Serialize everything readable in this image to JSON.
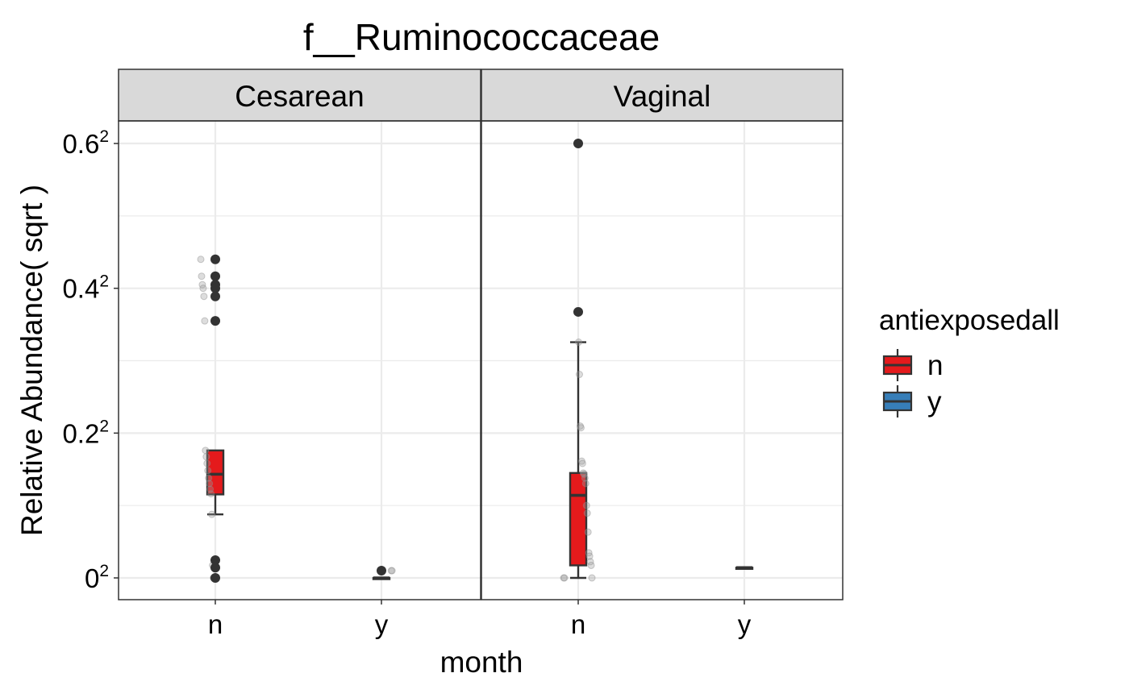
{
  "chart_data": {
    "type": "box",
    "title": "f__Ruminococcaceae",
    "xlabel": "month",
    "ylabel": "Relative Abundance( sqrt )",
    "y_scale": "sqrt",
    "ylim": [
      0,
      0.366
    ],
    "y_ticks": [
      {
        "value": 0,
        "base": "0",
        "exp": "2"
      },
      {
        "value": 0.04,
        "base": "0.2",
        "exp": "2"
      },
      {
        "value": 0.16,
        "base": "0.4",
        "exp": "2"
      },
      {
        "value": 0.36,
        "base": "0.6",
        "exp": "2"
      }
    ],
    "categories": [
      "n",
      "y"
    ],
    "panels": [
      "Cesarean",
      "Vaginal"
    ],
    "legend": {
      "title": "antiexposedall",
      "position": "right",
      "entries": [
        {
          "label": "n",
          "color": "#E41A1C"
        },
        {
          "label": "y",
          "color": "#377EB8"
        }
      ]
    },
    "grid": true,
    "colors": {
      "n": "#E41A1C",
      "y": "#377EB8",
      "strip_fill": "#D9D9D9",
      "grid": "#EBEBEB",
      "outline": "#333333"
    },
    "boxes": [
      {
        "panel": "Cesarean",
        "x": "n",
        "group": "n",
        "min": 0.0077,
        "q1": 0.0133,
        "median": 0.0205,
        "q3": 0.031,
        "max": 0.031,
        "outliers": [
          0.1936,
          0.1736,
          0.164,
          0.16,
          0.1512,
          0.126,
          0.0006,
          0.0002,
          0
        ],
        "points": [
          0.1936,
          0.1736,
          0.164,
          0.16,
          0.1512,
          0.126,
          0.031,
          0.028,
          0.025,
          0.022,
          0.019,
          0.017,
          0.015,
          0.0135,
          0.0077,
          0.0003,
          0,
          0
        ]
      },
      {
        "panel": "Cesarean",
        "x": "y",
        "group": "n",
        "min": 0,
        "q1": 0,
        "median": 0,
        "q3": 0,
        "max": 0,
        "outliers": [
          0.0001
        ],
        "points": [
          0.0001,
          0.0001
        ]
      },
      {
        "panel": "Vaginal",
        "x": "n",
        "group": "n",
        "min": 0,
        "q1": 0.0003,
        "median": 0.013,
        "q3": 0.021,
        "max": 0.106,
        "outliers": [
          0.36,
          0.135
        ],
        "points": [
          0.36,
          0.135,
          0.106,
          0.079,
          0.044,
          0.043,
          0.026,
          0.025,
          0.021,
          0.0205,
          0.019,
          0.017,
          0.01,
          0.008,
          0.004,
          0.0012,
          0.0009,
          0.0005,
          0.0003,
          0,
          0,
          0
        ]
      },
      {
        "panel": "Vaginal",
        "x": "y",
        "group": "n",
        "min": 0.0002,
        "q1": 0.0002,
        "median": 0.0002,
        "q3": 0.0002,
        "max": 0.0002,
        "outliers": [],
        "points": []
      }
    ]
  }
}
